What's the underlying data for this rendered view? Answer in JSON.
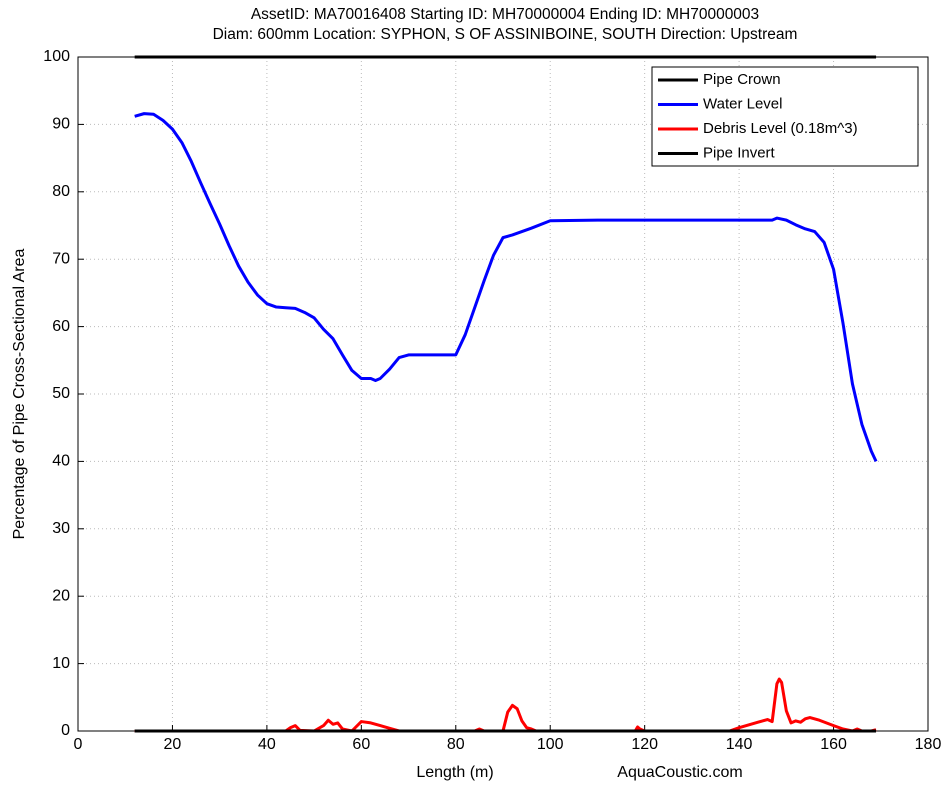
{
  "chart_data": {
    "type": "line",
    "title": [
      "AssetID: MA70016408  Starting ID: MH70000004  Ending ID: MH70000003",
      "Diam: 600mm  Location: SYPHON, S OF ASSINIBOINE, SOUTH   Direction: Upstream"
    ],
    "x_label": "Length (m)",
    "y_label": "Percentage of Pipe Cross-Sectional Area",
    "annotation": "AquaCoustic.com",
    "xlim": [
      0,
      180
    ],
    "xticks": [
      0,
      20,
      40,
      60,
      80,
      100,
      120,
      140,
      160,
      180
    ],
    "ylim": [
      0,
      100
    ],
    "yticks": [
      0,
      10,
      20,
      30,
      40,
      50,
      60,
      70,
      80,
      90,
      100
    ],
    "grid": true,
    "legend": "upper right",
    "series": [
      {
        "name": "Pipe Crown",
        "color": "#000000",
        "x": [
          12,
          169
        ],
        "values": [
          100,
          100
        ]
      },
      {
        "name": "Water Level",
        "color": "#0000ff",
        "x": [
          12,
          14,
          16,
          18,
          20,
          22,
          24,
          26,
          28,
          30,
          32,
          34,
          36,
          38,
          40,
          42,
          44,
          46,
          48,
          50,
          52,
          54,
          56,
          58,
          60,
          62,
          63,
          64,
          66,
          68,
          70,
          80,
          82,
          84,
          86,
          88,
          90,
          92,
          96,
          100,
          110,
          120,
          130,
          140,
          147,
          148,
          150,
          152,
          154,
          156,
          158,
          160,
          162,
          164,
          166,
          168,
          169
        ],
        "values": [
          91.2,
          91.6,
          91.5,
          90.6,
          89.3,
          87.3,
          84.5,
          81.3,
          78.2,
          75.2,
          72.0,
          69.0,
          66.6,
          64.7,
          63.4,
          62.9,
          62.8,
          62.7,
          62.1,
          61.3,
          59.6,
          58.2,
          55.8,
          53.5,
          52.3,
          52.3,
          52.0,
          52.3,
          53.7,
          55.4,
          55.8,
          55.8,
          58.8,
          62.8,
          66.8,
          70.6,
          73.2,
          73.6,
          74.6,
          75.7,
          75.8,
          75.8,
          75.8,
          75.8,
          75.8,
          76.1,
          75.8,
          75.1,
          74.5,
          74.1,
          72.5,
          68.5,
          60.5,
          51.5,
          45.5,
          41.5,
          40
        ]
      },
      {
        "name": "Debris Level (0.18m^3)",
        "color": "#ff0000",
        "x": [
          12,
          44,
          45,
          46,
          47,
          50,
          52,
          53,
          54,
          55,
          56,
          58,
          60,
          62,
          64,
          66,
          68,
          84,
          85,
          86,
          90,
          91,
          92,
          93,
          94,
          95,
          96,
          97,
          118,
          118.5,
          119,
          120,
          138,
          140,
          142,
          144,
          146,
          147,
          148,
          148.5,
          149,
          150,
          151,
          152,
          153,
          154,
          155,
          157,
          160,
          162,
          164,
          165,
          166,
          168,
          169
        ],
        "values": [
          0,
          0,
          0.5,
          0.8,
          0.1,
          0,
          0.8,
          1.6,
          1.0,
          1.2,
          0.3,
          0,
          1.4,
          1.2,
          0.8,
          0.4,
          0,
          0,
          0.3,
          0,
          0,
          2.8,
          3.8,
          3.3,
          1.5,
          0.5,
          0.3,
          0,
          0,
          0.6,
          0.3,
          0,
          0,
          0.5,
          0.9,
          1.3,
          1.7,
          1.4,
          7.0,
          7.7,
          7.2,
          3.0,
          1.2,
          1.5,
          1.3,
          1.8,
          2.0,
          1.6,
          0.8,
          0.3,
          0,
          0.3,
          0,
          0,
          0.2
        ]
      },
      {
        "name": "Pipe Invert",
        "color": "#000000",
        "x": [
          12,
          169
        ],
        "values": [
          0,
          0
        ]
      }
    ]
  }
}
